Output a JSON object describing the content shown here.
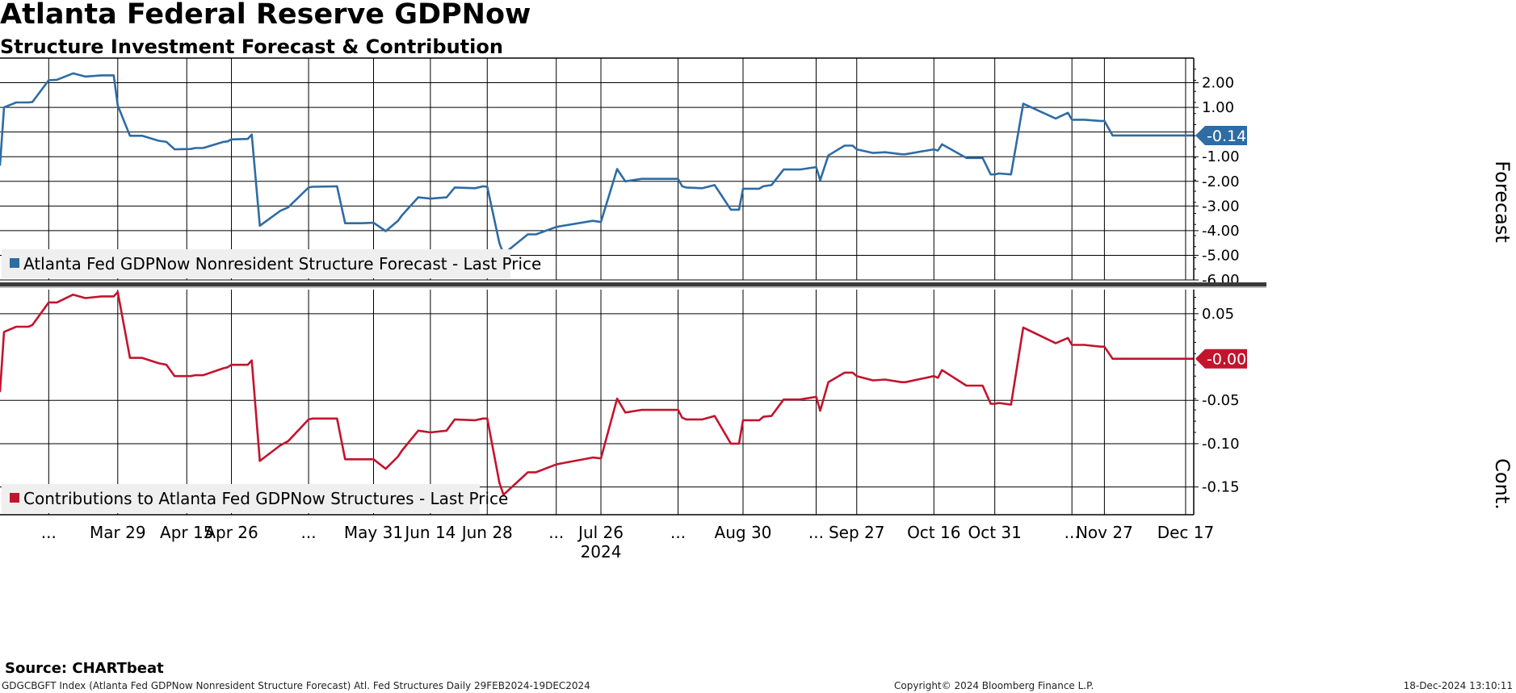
{
  "title": "Atlanta Federal Reserve GDPNow",
  "subtitle": "Structure Investment Forecast & Contribution",
  "source": "Source: CHARTbeat",
  "footer": {
    "left": "GDGCBGFT Index (Atlanta Fed GDPNow Nonresident Structure Forecast) Atl. Fed Structures  Daily 29FEB2024-19DEC2024",
    "middle": "Copyright© 2024 Bloomberg Finance L.P.",
    "right": "18-Dec-2024 13:10:11"
  },
  "colors": {
    "forecast": "#2e6ca4",
    "contribution": "#c3142d",
    "grid": "#000000"
  },
  "chart_data": [
    {
      "type": "line",
      "panel": "top",
      "ylabel": "Forecast",
      "ylim": [
        -6.0,
        3.0
      ],
      "yticks": [
        2.0,
        1.0,
        -1.0,
        -2.0,
        -3.0,
        -4.0,
        -5.0,
        -6.0
      ],
      "ytick_labels": [
        "2.00",
        "1.00",
        "-1.00",
        "-2.00",
        "-3.00",
        "-4.00",
        "-5.00",
        "-6.00"
      ],
      "last_value_label": "-0.14",
      "legend": "Atlanta Fed GDPNow Nonresident Structure Forecast - Last Price",
      "legend_position": "bottom-left",
      "grid": true,
      "series": [
        {
          "name": "Atlanta Fed GDPNow Nonresident Structure Forecast - Last Price",
          "x": [
            "2024-02-29",
            "2024-03-01",
            "2024-03-04",
            "2024-03-07",
            "2024-03-08",
            "2024-03-12",
            "2024-03-14",
            "2024-03-18",
            "2024-03-21",
            "2024-03-25",
            "2024-03-28",
            "2024-03-29",
            "2024-04-01",
            "2024-04-04",
            "2024-04-08",
            "2024-04-10",
            "2024-04-12",
            "2024-04-16",
            "2024-04-17",
            "2024-04-19",
            "2024-04-24",
            "2024-04-25",
            "2024-04-26",
            "2024-04-30",
            "2024-05-01",
            "2024-05-03",
            "2024-05-08",
            "2024-05-10",
            "2024-05-15",
            "2024-05-16",
            "2024-05-22",
            "2024-05-24",
            "2024-05-28",
            "2024-05-31",
            "2024-06-03",
            "2024-06-06",
            "2024-06-07",
            "2024-06-11",
            "2024-06-14",
            "2024-06-18",
            "2024-06-20",
            "2024-06-25",
            "2024-06-27",
            "2024-06-28",
            "2024-07-01",
            "2024-07-02",
            "2024-07-08",
            "2024-07-10",
            "2024-07-15",
            "2024-07-16",
            "2024-07-24",
            "2024-07-26",
            "2024-07-30",
            "2024-08-01",
            "2024-08-05",
            "2024-08-08",
            "2024-08-14",
            "2024-08-15",
            "2024-08-16",
            "2024-08-20",
            "2024-08-23",
            "2024-08-27",
            "2024-08-29",
            "2024-08-30",
            "2024-09-03",
            "2024-09-04",
            "2024-09-06",
            "2024-09-09",
            "2024-09-13",
            "2024-09-17",
            "2024-09-18",
            "2024-09-20",
            "2024-09-24",
            "2024-09-26",
            "2024-09-27",
            "2024-10-01",
            "2024-10-04",
            "2024-10-08",
            "2024-10-09",
            "2024-10-16",
            "2024-10-17",
            "2024-10-18",
            "2024-10-24",
            "2024-10-25",
            "2024-10-28",
            "2024-10-30",
            "2024-10-31",
            "2024-11-01",
            "2024-11-04",
            "2024-11-07",
            "2024-11-15",
            "2024-11-18",
            "2024-11-19",
            "2024-11-22",
            "2024-11-26",
            "2024-11-27",
            "2024-11-29",
            "2024-12-02",
            "2024-12-05",
            "2024-12-09",
            "2024-12-13",
            "2024-12-16",
            "2024-12-17",
            "2024-12-18",
            "2024-12-19"
          ],
          "values": [
            -1.35,
            1.0,
            1.2,
            1.2,
            1.22,
            2.1,
            2.12,
            2.38,
            2.25,
            2.3,
            2.3,
            1.08,
            -0.15,
            -0.15,
            -0.35,
            -0.4,
            -0.7,
            -0.69,
            -0.65,
            -0.65,
            -0.4,
            -0.38,
            -0.3,
            -0.28,
            -0.1,
            -3.8,
            -3.2,
            -3.05,
            -2.25,
            -2.22,
            -2.2,
            -3.7,
            -3.7,
            -3.68,
            -4.02,
            -3.6,
            -3.38,
            -2.65,
            -2.7,
            -2.65,
            -2.25,
            -2.28,
            -2.2,
            -2.22,
            -4.5,
            -4.95,
            -4.15,
            -4.15,
            -3.85,
            -3.82,
            -3.6,
            -3.65,
            -1.5,
            -2.0,
            -1.9,
            -1.9,
            -1.9,
            -2.2,
            -2.25,
            -2.28,
            -2.15,
            -3.15,
            -3.15,
            -2.3,
            -2.3,
            -2.2,
            -2.15,
            -1.52,
            -1.52,
            -1.42,
            -1.95,
            -0.95,
            -0.55,
            -0.55,
            -0.7,
            -0.85,
            -0.82,
            -0.9,
            -0.9,
            -0.7,
            -0.75,
            -0.5,
            -1.05,
            -1.05,
            -1.05,
            -1.72,
            -1.72,
            -1.68,
            -1.72,
            1.15,
            0.55,
            0.78,
            0.5,
            0.5,
            0.45,
            0.45,
            -0.14,
            -0.14,
            -0.14,
            -0.14,
            -0.14,
            -0.14,
            -0.14,
            -0.14,
            -0.14
          ]
        }
      ]
    },
    {
      "type": "line",
      "panel": "bottom",
      "ylabel": "Cont.",
      "ylim": [
        -0.182,
        0.0778
      ],
      "yticks": [
        0.05,
        -0.05,
        -0.1,
        -0.15
      ],
      "ytick_labels": [
        "0.05",
        "-0.05",
        "-0.10",
        "-0.15"
      ],
      "last_value_label": "-0.00",
      "legend": "Contributions to Atlanta Fed GDPNow Structures - Last Price",
      "legend_position": "bottom-left",
      "grid": true,
      "x_tick_labels": [
        "...",
        "Mar 29",
        "Apr 15",
        "Apr 26",
        "...",
        "May 31",
        "Jun 14",
        "Jun 28",
        "...",
        "Jul 26",
        "...",
        "Aug 30",
        "...",
        "Sep 27",
        "Oct 16",
        "Oct 31",
        "...",
        "Nov 27",
        "Dec 17"
      ],
      "x_year_label": "2024",
      "series": [
        {
          "name": "Contributions to Atlanta Fed GDPNow Structures - Last Price",
          "x": [
            "2024-02-29",
            "2024-03-01",
            "2024-03-04",
            "2024-03-07",
            "2024-03-08",
            "2024-03-12",
            "2024-03-14",
            "2024-03-18",
            "2024-03-21",
            "2024-03-25",
            "2024-03-28",
            "2024-03-29",
            "2024-04-01",
            "2024-04-04",
            "2024-04-08",
            "2024-04-10",
            "2024-04-12",
            "2024-04-16",
            "2024-04-17",
            "2024-04-19",
            "2024-04-24",
            "2024-04-25",
            "2024-04-26",
            "2024-04-30",
            "2024-05-01",
            "2024-05-03",
            "2024-05-08",
            "2024-05-10",
            "2024-05-15",
            "2024-05-16",
            "2024-05-22",
            "2024-05-24",
            "2024-05-28",
            "2024-05-31",
            "2024-06-03",
            "2024-06-06",
            "2024-06-07",
            "2024-06-11",
            "2024-06-14",
            "2024-06-18",
            "2024-06-20",
            "2024-06-25",
            "2024-06-27",
            "2024-06-28",
            "2024-07-01",
            "2024-07-02",
            "2024-07-08",
            "2024-07-10",
            "2024-07-15",
            "2024-07-16",
            "2024-07-24",
            "2024-07-26",
            "2024-07-30",
            "2024-08-01",
            "2024-08-05",
            "2024-08-08",
            "2024-08-14",
            "2024-08-15",
            "2024-08-16",
            "2024-08-20",
            "2024-08-23",
            "2024-08-27",
            "2024-08-29",
            "2024-08-30",
            "2024-09-03",
            "2024-09-04",
            "2024-09-06",
            "2024-09-09",
            "2024-09-13",
            "2024-09-17",
            "2024-09-18",
            "2024-09-20",
            "2024-09-24",
            "2024-09-26",
            "2024-09-27",
            "2024-10-01",
            "2024-10-04",
            "2024-10-08",
            "2024-10-09",
            "2024-10-16",
            "2024-10-17",
            "2024-10-18",
            "2024-10-24",
            "2024-10-25",
            "2024-10-28",
            "2024-10-30",
            "2024-10-31",
            "2024-11-01",
            "2024-11-04",
            "2024-11-07",
            "2024-11-15",
            "2024-11-18",
            "2024-11-19",
            "2024-11-22",
            "2024-11-26",
            "2024-11-27",
            "2024-11-29",
            "2024-12-02",
            "2024-12-05",
            "2024-12-09",
            "2024-12-13",
            "2024-12-16",
            "2024-12-17",
            "2024-12-18",
            "2024-12-19"
          ],
          "values": [
            -0.04,
            0.029,
            0.035,
            0.035,
            0.037,
            0.063,
            0.063,
            0.072,
            0.068,
            0.07,
            0.07,
            0.075,
            -0.001,
            -0.001,
            -0.007,
            -0.009,
            -0.022,
            -0.022,
            -0.021,
            -0.021,
            -0.013,
            -0.012,
            -0.009,
            -0.009,
            -0.004,
            -0.12,
            -0.102,
            -0.097,
            -0.072,
            -0.071,
            -0.071,
            -0.118,
            -0.118,
            -0.118,
            -0.129,
            -0.115,
            -0.108,
            -0.085,
            -0.087,
            -0.085,
            -0.072,
            -0.073,
            -0.071,
            -0.071,
            -0.145,
            -0.159,
            -0.133,
            -0.133,
            -0.124,
            -0.123,
            -0.116,
            -0.117,
            -0.048,
            -0.064,
            -0.061,
            -0.061,
            -0.061,
            -0.07,
            -0.072,
            -0.072,
            -0.068,
            -0.1,
            -0.1,
            -0.073,
            -0.073,
            -0.069,
            -0.068,
            -0.049,
            -0.049,
            -0.046,
            -0.062,
            -0.029,
            -0.018,
            -0.018,
            -0.022,
            -0.027,
            -0.026,
            -0.029,
            -0.029,
            -0.022,
            -0.024,
            -0.015,
            -0.033,
            -0.033,
            -0.033,
            -0.054,
            -0.054,
            -0.053,
            -0.055,
            0.034,
            0.016,
            0.022,
            0.014,
            0.014,
            0.012,
            0.012,
            -0.002,
            -0.002,
            -0.002,
            -0.002,
            -0.002,
            -0.002,
            -0.002,
            -0.002,
            -0.002
          ]
        }
      ]
    }
  ]
}
